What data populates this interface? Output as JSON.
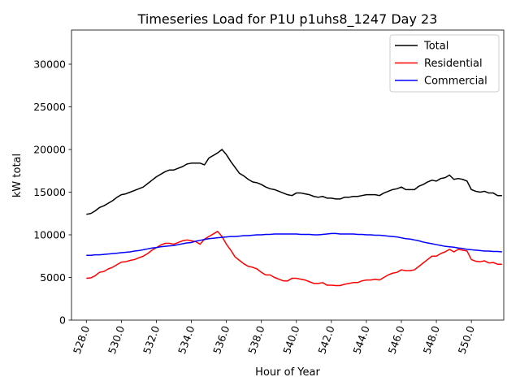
{
  "chart_data": {
    "type": "line",
    "title": "Timeseries Load for P1U p1uhs8_1247  Day 23",
    "xlabel": "Hour of Year",
    "ylabel": "kW total",
    "xlim": [
      527.15,
      551.85
    ],
    "ylim": [
      0,
      34000
    ],
    "x_ticks": [
      528.0,
      530.0,
      532.0,
      534.0,
      536.0,
      538.0,
      540.0,
      542.0,
      544.0,
      546.0,
      548.0,
      550.0
    ],
    "x_tick_labels": [
      "528.0",
      "530.0",
      "532.0",
      "534.0",
      "536.0",
      "538.0",
      "540.0",
      "542.0",
      "544.0",
      "546.0",
      "548.0",
      "550.0"
    ],
    "y_ticks": [
      0,
      5000,
      10000,
      15000,
      20000,
      25000,
      30000
    ],
    "y_tick_labels": [
      "0",
      "5000",
      "10000",
      "15000",
      "20000",
      "25000",
      "30000"
    ],
    "legend_position": "upper right",
    "x": [
      528.0,
      528.25,
      528.5,
      528.75,
      529.0,
      529.25,
      529.5,
      529.75,
      530.0,
      530.25,
      530.5,
      530.75,
      531.0,
      531.25,
      531.5,
      531.75,
      532.0,
      532.25,
      532.5,
      532.75,
      533.0,
      533.25,
      533.5,
      533.75,
      534.0,
      534.25,
      534.5,
      534.75,
      535.0,
      535.25,
      535.5,
      535.75,
      536.0,
      536.25,
      536.5,
      536.75,
      537.0,
      537.25,
      537.5,
      537.75,
      538.0,
      538.25,
      538.5,
      538.75,
      539.0,
      539.25,
      539.5,
      539.75,
      540.0,
      540.25,
      540.5,
      540.75,
      541.0,
      541.25,
      541.5,
      541.75,
      542.0,
      542.25,
      542.5,
      542.75,
      543.0,
      543.25,
      543.5,
      543.75,
      544.0,
      544.25,
      544.5,
      544.75,
      545.0,
      545.25,
      545.5,
      545.75,
      546.0,
      546.25,
      546.5,
      546.75,
      547.0,
      547.25,
      547.5,
      547.75,
      548.0,
      548.25,
      548.5,
      548.75,
      549.0,
      549.25,
      549.5,
      549.75,
      550.0,
      550.25,
      550.5,
      550.75,
      551.0,
      551.25,
      551.5,
      551.75
    ],
    "series": [
      {
        "name": "Total",
        "color": "#000000",
        "values": [
          12400,
          12500,
          12800,
          13200,
          13400,
          13700,
          14000,
          14400,
          14700,
          14800,
          15000,
          15200,
          15400,
          15600,
          16000,
          16400,
          16800,
          17100,
          17400,
          17600,
          17600,
          17800,
          18000,
          18300,
          18400,
          18400,
          18400,
          18200,
          19000,
          19300,
          19600,
          20000,
          19400,
          18600,
          17900,
          17200,
          16900,
          16500,
          16200,
          16100,
          15900,
          15600,
          15400,
          15300,
          15100,
          14900,
          14700,
          14600,
          14900,
          14900,
          14800,
          14700,
          14500,
          14400,
          14500,
          14300,
          14300,
          14200,
          14200,
          14400,
          14400,
          14500,
          14500,
          14600,
          14700,
          14700,
          14700,
          14600,
          14900,
          15100,
          15300,
          15400,
          15600,
          15300,
          15300,
          15300,
          15700,
          15900,
          16200,
          16400,
          16300,
          16600,
          16700,
          17000,
          16500,
          16600,
          16500,
          16300,
          15300,
          15100,
          15000,
          15100,
          14900,
          14900,
          14600,
          14600
        ]
      },
      {
        "name": "Residential",
        "color": "#ff0000",
        "values": [
          4900,
          4950,
          5200,
          5600,
          5700,
          6000,
          6200,
          6500,
          6800,
          6850,
          7000,
          7100,
          7300,
          7500,
          7800,
          8200,
          8500,
          8800,
          9000,
          9000,
          8900,
          9100,
          9300,
          9400,
          9300,
          9200,
          8900,
          9500,
          9800,
          10100,
          10400,
          9800,
          8900,
          8200,
          7400,
          7000,
          6600,
          6300,
          6200,
          6000,
          5600,
          5300,
          5300,
          5000,
          4800,
          4600,
          4600,
          4900,
          4900,
          4800,
          4700,
          4500,
          4300,
          4300,
          4400,
          4100,
          4100,
          4050,
          4050,
          4200,
          4300,
          4400,
          4400,
          4600,
          4700,
          4700,
          4800,
          4700,
          5000,
          5300,
          5500,
          5600,
          5900,
          5800,
          5800,
          5900,
          6300,
          6700,
          7100,
          7500,
          7500,
          7800,
          8000,
          8300,
          8000,
          8300,
          8200,
          8100,
          7100,
          6900,
          6850,
          6950,
          6700,
          6750,
          6550,
          6550
        ]
      },
      {
        "name": "Commercial",
        "color": "#0000ff",
        "values": [
          7600,
          7600,
          7650,
          7650,
          7700,
          7750,
          7800,
          7850,
          7900,
          7950,
          8000,
          8100,
          8150,
          8250,
          8350,
          8450,
          8500,
          8600,
          8650,
          8700,
          8750,
          8850,
          8950,
          9050,
          9100,
          9250,
          9350,
          9450,
          9550,
          9600,
          9650,
          9700,
          9750,
          9800,
          9800,
          9850,
          9900,
          9900,
          9950,
          10000,
          10000,
          10050,
          10050,
          10100,
          10100,
          10100,
          10100,
          10100,
          10100,
          10050,
          10050,
          10050,
          10000,
          10000,
          10050,
          10100,
          10150,
          10150,
          10100,
          10100,
          10100,
          10100,
          10050,
          10050,
          10000,
          10000,
          9950,
          9950,
          9900,
          9850,
          9800,
          9750,
          9650,
          9550,
          9500,
          9400,
          9300,
          9150,
          9050,
          8950,
          8850,
          8750,
          8650,
          8600,
          8550,
          8450,
          8400,
          8300,
          8250,
          8200,
          8150,
          8100,
          8100,
          8050,
          8050,
          8000
        ]
      }
    ]
  }
}
